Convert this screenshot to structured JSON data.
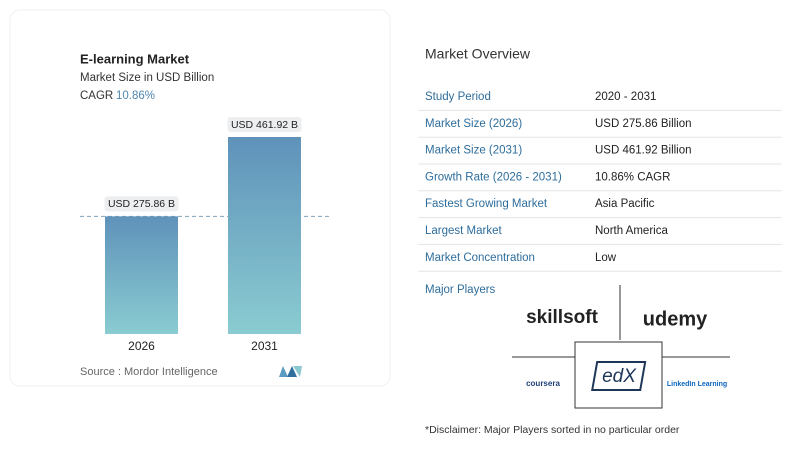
{
  "chart_data": {
    "type": "bar",
    "title": "E-learning Market",
    "subtitle": "Market Size in USD Billion",
    "cagr_label": "CAGR",
    "cagr_value": "10.86%",
    "categories": [
      "2026",
      "2031"
    ],
    "values": [
      275.86,
      461.92
    ],
    "value_labels": [
      "USD 275.86 B",
      "USD 461.92 B"
    ],
    "source": "Source :  Mordor Intelligence"
  },
  "overview": {
    "title": "Market Overview",
    "rows": [
      [
        "Study Period",
        "2020 - 2031"
      ],
      [
        "Market Size (2026)",
        "USD 275.86 Billion"
      ],
      [
        "Market Size (2031)",
        "USD 461.92 Billion"
      ],
      [
        "Growth Rate (2026 - 2031)",
        "10.86% CAGR"
      ],
      [
        "Fastest Growing Market",
        "Asia Pacific"
      ],
      [
        "Largest Market",
        "North America"
      ],
      [
        "Market Concentration",
        "Low"
      ]
    ]
  },
  "players": {
    "title": "Major Players",
    "logos": [
      "skillsoft",
      "udemy",
      "coursera",
      "edX",
      "LinkedIn Learning"
    ]
  },
  "disclaimer": "*Disclaimer: Major Players sorted in no particular order"
}
